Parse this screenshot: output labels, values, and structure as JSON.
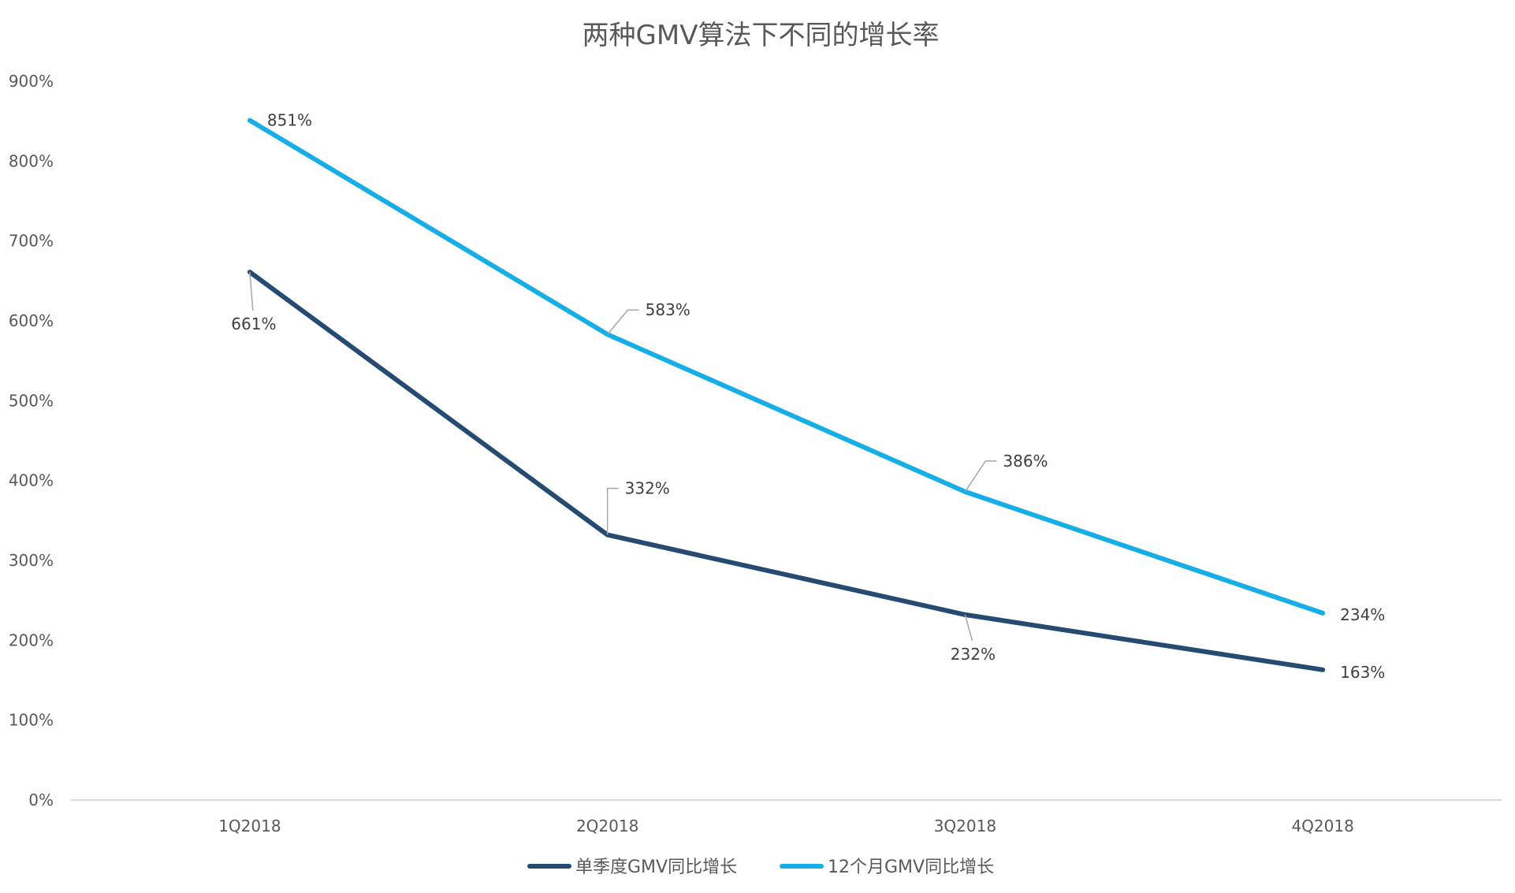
{
  "chart_data": {
    "type": "line",
    "title": "两种GMV算法下不同的增长率",
    "xlabel": "",
    "ylabel": "",
    "categories": [
      "1Q2018",
      "2Q2018",
      "3Q2018",
      "4Q2018"
    ],
    "ylim": [
      0,
      900
    ],
    "yticks": [
      0,
      100,
      200,
      300,
      400,
      500,
      600,
      700,
      800,
      900
    ],
    "ytick_suffix": "%",
    "grid": false,
    "legend_position": "bottom",
    "series": [
      {
        "name": "单季度GMV同比增长",
        "color": "#264B73",
        "values": [
          661,
          332,
          232,
          163
        ],
        "labels": [
          "661%",
          "332%",
          "232%",
          "163%"
        ]
      },
      {
        "name": "12个月GMV同比增长",
        "color": "#16AEE6",
        "values": [
          851,
          583,
          386,
          234
        ],
        "labels": [
          "851%",
          "583%",
          "386%",
          "234%"
        ]
      }
    ]
  }
}
